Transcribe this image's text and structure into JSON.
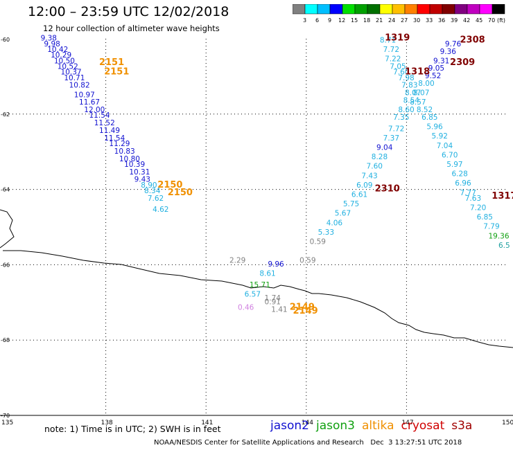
{
  "header": {
    "title": "12:00 – 23:59 UTC 12/02/2018",
    "subtitle": "12 hour collection of altimeter wave heights"
  },
  "colorbar": {
    "colors": [
      "#808080",
      "#00ffff",
      "#00bfff",
      "#0000ff",
      "#00e000",
      "#00a000",
      "#007000",
      "#ffff00",
      "#ffc000",
      "#ff8000",
      "#ff0000",
      "#c00000",
      "#800000",
      "#800080",
      "#c000c0",
      "#ff00ff",
      "#000000"
    ],
    "labels": [
      "3",
      "6",
      "9",
      "12",
      "15",
      "18",
      "21",
      "24",
      "27",
      "30",
      "33",
      "36",
      "39",
      "42",
      "45",
      "70",
      "(ft)"
    ]
  },
  "footer": {
    "note": "note: 1) Time is in UTC; 2) SWH is in feet",
    "credit": "NOAA/NESDIS Center for Satellite Applications and Research   Dec  3 13:27:51 UTC 2018",
    "satellites": [
      {
        "name": "jason2",
        "color": "#1010d0"
      },
      {
        "name": "jason3",
        "color": "#10a010"
      },
      {
        "name": "altika",
        "color": "#f09000"
      },
      {
        "name": "cryosat",
        "color": "#d00000"
      },
      {
        "name": "s3a",
        "color": "#a00000"
      }
    ]
  },
  "chart_data": {
    "type": "scatter",
    "xlim": [
      135,
      150
    ],
    "ylim": [
      -70,
      -60
    ],
    "x_ticks": [
      "135",
      "138",
      "141",
      "144",
      "147",
      "150"
    ],
    "y_ticks": [
      "-60",
      "-62",
      "-64",
      "-66",
      "-68",
      "-70"
    ],
    "grid": true,
    "colors": {
      "cyan": "#20b0e0",
      "blue": "#1010d0",
      "gray": "#808080",
      "green": "#10a010",
      "pink": "#d080e0",
      "orange": "#f09000",
      "dark": "#800000",
      "teal": "#20a0a0"
    },
    "points": [
      {
        "x": 136.05,
        "y": -60.05,
        "label": "9.38",
        "color": "blue"
      },
      {
        "x": 136.15,
        "y": -60.2,
        "label": "9.98",
        "color": "blue"
      },
      {
        "x": 136.25,
        "y": -60.35,
        "label": "10.42",
        "color": "blue"
      },
      {
        "x": 136.35,
        "y": -60.5,
        "label": "10.29",
        "color": "blue"
      },
      {
        "x": 136.45,
        "y": -60.65,
        "label": "10.50",
        "color": "blue"
      },
      {
        "x": 136.55,
        "y": -60.8,
        "label": "10.52",
        "color": "blue"
      },
      {
        "x": 136.65,
        "y": -60.95,
        "label": "10.37",
        "color": "blue"
      },
      {
        "x": 136.75,
        "y": -61.1,
        "label": "10.71",
        "color": "blue"
      },
      {
        "x": 136.9,
        "y": -61.3,
        "label": "10.82",
        "color": "blue"
      },
      {
        "x": 137.05,
        "y": -61.55,
        "label": "10.97",
        "color": "blue"
      },
      {
        "x": 137.2,
        "y": -61.75,
        "label": "11.67",
        "color": "blue"
      },
      {
        "x": 137.35,
        "y": -61.95,
        "label": "12.00",
        "color": "blue"
      },
      {
        "x": 137.5,
        "y": -62.1,
        "label": "11.54",
        "color": "blue"
      },
      {
        "x": 137.65,
        "y": -62.3,
        "label": "11.52",
        "color": "blue"
      },
      {
        "x": 137.8,
        "y": -62.5,
        "label": "11.49",
        "color": "blue"
      },
      {
        "x": 137.95,
        "y": -62.7,
        "label": "11.54",
        "color": "blue"
      },
      {
        "x": 138.1,
        "y": -62.85,
        "label": "11.29",
        "color": "blue"
      },
      {
        "x": 138.25,
        "y": -63.05,
        "label": "10.83",
        "color": "blue"
      },
      {
        "x": 138.4,
        "y": -63.25,
        "label": "10.80",
        "color": "blue"
      },
      {
        "x": 138.55,
        "y": -63.4,
        "label": "10.39",
        "color": "blue"
      },
      {
        "x": 138.7,
        "y": -63.6,
        "label": "10.31",
        "color": "blue"
      },
      {
        "x": 138.85,
        "y": -63.8,
        "label": "9.43",
        "color": "blue"
      },
      {
        "x": 139.05,
        "y": -63.95,
        "label": "8.90",
        "color": "cyan"
      },
      {
        "x": 139.15,
        "y": -64.1,
        "label": "8.34",
        "color": "cyan"
      },
      {
        "x": 139.25,
        "y": -64.3,
        "label": "7.62",
        "color": "cyan"
      },
      {
        "x": 139.4,
        "y": -64.6,
        "label": "4.62",
        "color": "cyan"
      },
      {
        "x": 137.8,
        "y": -60.7,
        "label": "2151",
        "color": "orange",
        "bold": true
      },
      {
        "x": 137.95,
        "y": -60.95,
        "label": "2151",
        "color": "orange",
        "bold": true
      },
      {
        "x": 139.55,
        "y": -63.95,
        "label": "2150",
        "color": "orange",
        "bold": true
      },
      {
        "x": 139.85,
        "y": -64.15,
        "label": "2150",
        "color": "orange",
        "bold": true
      },
      {
        "x": 146.2,
        "y": -60.1,
        "label": "8.71",
        "color": "cyan"
      },
      {
        "x": 146.3,
        "y": -60.35,
        "label": "7.72",
        "color": "cyan"
      },
      {
        "x": 146.35,
        "y": -60.6,
        "label": "7.22",
        "color": "cyan"
      },
      {
        "x": 146.5,
        "y": -60.8,
        "label": "7.05",
        "color": "cyan"
      },
      {
        "x": 146.6,
        "y": -60.95,
        "label": "7.60",
        "color": "cyan"
      },
      {
        "x": 146.75,
        "y": -61.1,
        "label": "7.98",
        "color": "cyan"
      },
      {
        "x": 146.85,
        "y": -61.3,
        "label": "7.83",
        "color": "cyan"
      },
      {
        "x": 146.95,
        "y": -61.5,
        "label": "8.07",
        "color": "cyan"
      },
      {
        "x": 146.9,
        "y": -61.7,
        "label": "8.54",
        "color": "cyan"
      },
      {
        "x": 146.75,
        "y": -61.95,
        "label": "8.60",
        "color": "cyan"
      },
      {
        "x": 146.6,
        "y": -62.15,
        "label": "7.35",
        "color": "cyan"
      },
      {
        "x": 146.45,
        "y": -62.45,
        "label": "7.72",
        "color": "cyan"
      },
      {
        "x": 146.3,
        "y": -62.7,
        "label": "7.37",
        "color": "cyan"
      },
      {
        "x": 146.1,
        "y": -62.95,
        "label": "9.04",
        "color": "blue"
      },
      {
        "x": 145.95,
        "y": -63.2,
        "label": "8.28",
        "color": "cyan"
      },
      {
        "x": 145.8,
        "y": -63.45,
        "label": "7.60",
        "color": "cyan"
      },
      {
        "x": 145.65,
        "y": -63.7,
        "label": "7.43",
        "color": "cyan"
      },
      {
        "x": 145.5,
        "y": -63.95,
        "label": "6.09",
        "color": "cyan"
      },
      {
        "x": 145.35,
        "y": -64.2,
        "label": "6.61",
        "color": "cyan"
      },
      {
        "x": 145.1,
        "y": -64.45,
        "label": "5.75",
        "color": "cyan"
      },
      {
        "x": 144.85,
        "y": -64.7,
        "label": "5.67",
        "color": "cyan"
      },
      {
        "x": 144.6,
        "y": -64.95,
        "label": "4.06",
        "color": "cyan"
      },
      {
        "x": 144.35,
        "y": -65.2,
        "label": "5.33",
        "color": "cyan"
      },
      {
        "x": 144.1,
        "y": -65.45,
        "label": "0.59",
        "color": "gray"
      },
      {
        "x": 143.8,
        "y": -65.95,
        "label": "0.59",
        "color": "gray"
      },
      {
        "x": 146.05,
        "y": -64.05,
        "label": "2310",
        "color": "dark",
        "bold": true
      },
      {
        "x": 146.35,
        "y": -60.05,
        "label": "1319",
        "color": "dark",
        "bold": true
      },
      {
        "x": 148.15,
        "y": -60.2,
        "label": "9.76",
        "color": "blue"
      },
      {
        "x": 148.0,
        "y": -60.4,
        "label": "9.36",
        "color": "blue"
      },
      {
        "x": 147.8,
        "y": -60.65,
        "label": "9.31",
        "color": "blue"
      },
      {
        "x": 147.65,
        "y": -60.85,
        "label": "9.05",
        "color": "blue"
      },
      {
        "x": 147.55,
        "y": -61.05,
        "label": "9.52",
        "color": "blue"
      },
      {
        "x": 147.35,
        "y": -61.25,
        "label": "8.00",
        "color": "cyan"
      },
      {
        "x": 147.2,
        "y": -61.5,
        "label": "8.07",
        "color": "cyan"
      },
      {
        "x": 147.1,
        "y": -61.75,
        "label": "8.57",
        "color": "cyan"
      },
      {
        "x": 147.3,
        "y": -61.95,
        "label": "8.52",
        "color": "cyan"
      },
      {
        "x": 147.45,
        "y": -62.15,
        "label": "6.85",
        "color": "cyan"
      },
      {
        "x": 147.6,
        "y": -62.4,
        "label": "5.96",
        "color": "cyan"
      },
      {
        "x": 147.75,
        "y": -62.65,
        "label": "5.92",
        "color": "cyan"
      },
      {
        "x": 147.9,
        "y": -62.9,
        "label": "7.04",
        "color": "cyan"
      },
      {
        "x": 148.05,
        "y": -63.15,
        "label": "6.70",
        "color": "cyan"
      },
      {
        "x": 148.2,
        "y": -63.4,
        "label": "5.97",
        "color": "cyan"
      },
      {
        "x": 148.35,
        "y": -63.65,
        "label": "6.28",
        "color": "cyan"
      },
      {
        "x": 148.45,
        "y": -63.9,
        "label": "6.96",
        "color": "cyan"
      },
      {
        "x": 148.6,
        "y": -64.15,
        "label": "7.77",
        "color": "cyan"
      },
      {
        "x": 148.75,
        "y": -64.3,
        "label": "7.63",
        "color": "cyan"
      },
      {
        "x": 148.9,
        "y": -64.55,
        "label": "7.20",
        "color": "cyan"
      },
      {
        "x": 149.1,
        "y": -64.8,
        "label": "6.85",
        "color": "cyan"
      },
      {
        "x": 149.3,
        "y": -65.05,
        "label": "7.79",
        "color": "cyan"
      },
      {
        "x": 149.45,
        "y": -65.3,
        "label": "19.36",
        "color": "green"
      },
      {
        "x": 149.75,
        "y": -65.55,
        "label": "6.5",
        "color": "teal"
      },
      {
        "x": 149.55,
        "y": -64.25,
        "label": "1317",
        "color": "dark",
        "bold": true
      },
      {
        "x": 148.6,
        "y": -60.1,
        "label": "2308",
        "color": "dark",
        "bold": true
      },
      {
        "x": 148.3,
        "y": -60.7,
        "label": "2309",
        "color": "dark",
        "bold": true
      },
      {
        "x": 146.95,
        "y": -60.95,
        "label": "1318",
        "color": "dark",
        "bold": true
      },
      {
        "x": 141.7,
        "y": -65.95,
        "label": "2.29",
        "color": "gray"
      },
      {
        "x": 142.85,
        "y": -66.05,
        "label": "9.96",
        "color": "blue"
      },
      {
        "x": 142.6,
        "y": -66.3,
        "label": "8.61",
        "color": "cyan"
      },
      {
        "x": 142.3,
        "y": -66.6,
        "label": "15.71",
        "color": "green"
      },
      {
        "x": 142.15,
        "y": -66.85,
        "label": "6.57",
        "color": "cyan"
      },
      {
        "x": 142.75,
        "y": -66.95,
        "label": "1.74",
        "color": "gray"
      },
      {
        "x": 142.75,
        "y": -67.05,
        "label": "0.91",
        "color": "gray"
      },
      {
        "x": 142.95,
        "y": -67.25,
        "label": "1.41",
        "color": "gray"
      },
      {
        "x": 141.95,
        "y": -67.2,
        "label": "0.46",
        "color": "pink"
      },
      {
        "x": 143.5,
        "y": -67.2,
        "label": "2149",
        "color": "orange",
        "bold": true
      },
      {
        "x": 143.6,
        "y": -67.3,
        "label": "2149",
        "color": "orange",
        "bold": true
      }
    ]
  }
}
